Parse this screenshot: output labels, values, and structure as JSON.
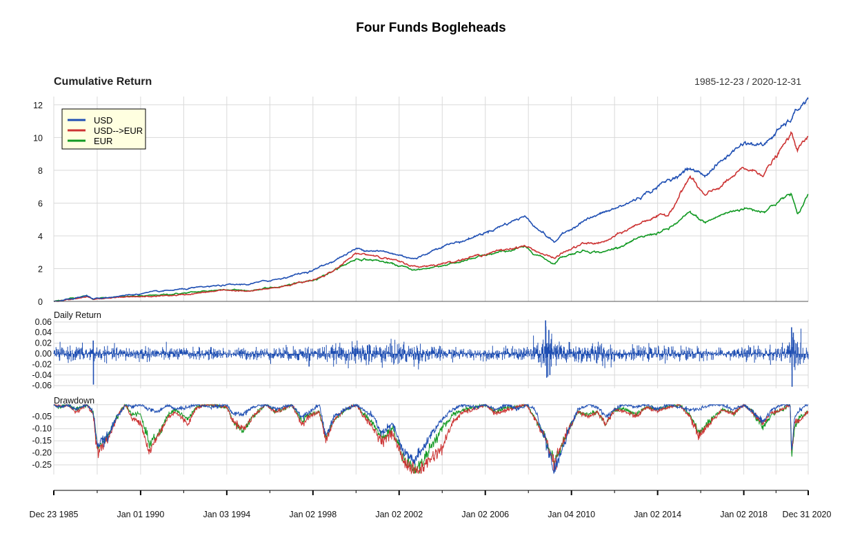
{
  "title": "Four Funds Bogleheads",
  "panels": {
    "cumulative": {
      "label": "Cumulative Return",
      "date_range": "1985-12-23 / 2020-12-31"
    },
    "daily": {
      "label": "Daily Return"
    },
    "drawdown": {
      "label": "Drawdown"
    }
  },
  "colors": {
    "USD": "#1f4fb3",
    "USD-->EUR": "#cc3333",
    "EUR": "#119922"
  },
  "chart_data": [
    {
      "type": "line",
      "title": "Cumulative Return",
      "subtitle": "1985-12-23 / 2020-12-31",
      "x": [
        1985.97,
        1987.5,
        1987.8,
        1988.5,
        1990.5,
        1992.0,
        1994.0,
        1995.0,
        1996.5,
        1998.0,
        1999.0,
        2000.0,
        2001.0,
        2002.8,
        2004.0,
        2005.0,
        2006.0,
        2007.8,
        2009.2,
        2009.5,
        2010.5,
        2011.5,
        2012.5,
        2013.5,
        2014.5,
        2015.5,
        2016.2,
        2017.0,
        2018.0,
        2018.9,
        2019.5,
        2020.2,
        2020.5,
        2021.0
      ],
      "series": [
        {
          "name": "USD",
          "values": [
            0,
            0.35,
            0.15,
            0.25,
            0.55,
            0.75,
            1.0,
            1.05,
            1.4,
            1.9,
            2.5,
            3.2,
            3.1,
            2.6,
            3.4,
            3.7,
            4.2,
            5.2,
            3.6,
            4.0,
            4.9,
            5.4,
            5.9,
            6.6,
            7.4,
            8.1,
            7.7,
            8.6,
            9.7,
            9.5,
            10.3,
            11.1,
            11.7,
            12.4
          ]
        },
        {
          "name": "USD-->EUR",
          "values": [
            0,
            0.3,
            0.1,
            0.2,
            0.3,
            0.4,
            0.7,
            0.6,
            0.9,
            1.3,
            1.9,
            2.9,
            2.8,
            2.1,
            2.3,
            2.6,
            2.9,
            3.4,
            2.6,
            2.9,
            3.5,
            3.6,
            4.3,
            5.0,
            5.3,
            7.6,
            6.4,
            7.1,
            8.1,
            7.8,
            8.8,
            10.2,
            9.3,
            10.0
          ]
        },
        {
          "name": "EUR",
          "values": [
            0,
            0.35,
            0.15,
            0.25,
            0.35,
            0.5,
            0.75,
            0.65,
            0.9,
            1.3,
            1.9,
            2.6,
            2.5,
            1.9,
            2.2,
            2.45,
            2.8,
            3.3,
            2.3,
            2.7,
            3.1,
            3.0,
            3.5,
            4.0,
            4.4,
            5.4,
            4.8,
            5.3,
            5.7,
            5.5,
            6.0,
            6.6,
            5.2,
            6.6
          ]
        }
      ],
      "ylim": [
        0,
        12.5
      ],
      "yticks": [
        "12",
        "10",
        "8",
        "6",
        "4",
        "2",
        "0"
      ],
      "legend": {
        "position": "top-left",
        "entries": [
          "USD",
          "USD-->EUR",
          "EUR"
        ]
      },
      "grid": true
    },
    {
      "type": "bar",
      "title": "Daily Return",
      "series_name": "USD",
      "ylim": [
        -0.065,
        0.065
      ],
      "yticks": [
        "0.06",
        "0.04",
        "0.02",
        "0.00",
        "-0.02",
        "-0.04",
        "-0.06"
      ],
      "base_volatility": [
        [
          1985.97,
          0.006
        ],
        [
          1987.7,
          0.008
        ],
        [
          1987.85,
          0.007
        ],
        [
          1988.5,
          0.006
        ],
        [
          1990.5,
          0.007
        ],
        [
          1991.5,
          0.006
        ],
        [
          1994.0,
          0.005
        ],
        [
          1997.5,
          0.007
        ],
        [
          1999.0,
          0.008
        ],
        [
          2000.5,
          0.011
        ],
        [
          2002.5,
          0.011
        ],
        [
          2003.5,
          0.007
        ],
        [
          2005.0,
          0.005
        ],
        [
          2007.5,
          0.006
        ],
        [
          2008.5,
          0.012
        ],
        [
          2008.9,
          0.022
        ],
        [
          2009.3,
          0.015
        ],
        [
          2010.0,
          0.009
        ],
        [
          2011.5,
          0.011
        ],
        [
          2012.5,
          0.006
        ],
        [
          2015.5,
          0.007
        ],
        [
          2017.0,
          0.004
        ],
        [
          2018.2,
          0.008
        ],
        [
          2019.0,
          0.006
        ],
        [
          2020.1,
          0.01
        ],
        [
          2020.25,
          0.028
        ],
        [
          2020.5,
          0.012
        ],
        [
          2021.0,
          0.009
        ]
      ],
      "spikes": [
        [
          1987.8,
          0.025
        ],
        [
          1987.81,
          -0.058
        ],
        [
          1997.82,
          -0.024
        ],
        [
          2008.8,
          0.063
        ],
        [
          2008.85,
          -0.045
        ],
        [
          2008.95,
          0.045
        ],
        [
          2009.0,
          -0.04
        ],
        [
          2020.22,
          0.05
        ],
        [
          2020.24,
          -0.062
        ],
        [
          2020.3,
          0.04
        ]
      ],
      "grid": true
    },
    {
      "type": "line",
      "title": "Drawdown",
      "x": [
        1985.97,
        1986.3,
        1986.6,
        1987.0,
        1987.5,
        1987.8,
        1988.0,
        1988.5,
        1988.9,
        1989.3,
        1989.6,
        1990.0,
        1990.4,
        1990.8,
        1991.3,
        1991.6,
        1992.2,
        1992.6,
        1993.2,
        1994.0,
        1994.3,
        1994.8,
        1995.2,
        1995.8,
        1996.3,
        1996.6,
        1997.0,
        1997.5,
        1997.8,
        1998.3,
        1998.6,
        1999.0,
        1999.5,
        2000.0,
        2000.3,
        2000.8,
        2001.2,
        2001.7,
        2002.2,
        2002.7,
        2003.0,
        2003.5,
        2004.0,
        2004.5,
        2005.0,
        2005.5,
        2006.0,
        2006.5,
        2007.0,
        2007.5,
        2007.9,
        2008.3,
        2008.8,
        2009.2,
        2009.5,
        2009.9,
        2010.3,
        2010.8,
        2011.2,
        2011.6,
        2012.0,
        2012.5,
        2013.0,
        2013.5,
        2014.0,
        2014.5,
        2015.0,
        2015.5,
        2015.9,
        2016.2,
        2016.6,
        2017.0,
        2017.5,
        2018.0,
        2018.4,
        2018.9,
        2019.3,
        2019.8,
        2020.15,
        2020.22,
        2020.35,
        2020.6,
        2021.0
      ],
      "series": [
        {
          "name": "USD",
          "values": [
            0,
            -0.01,
            0,
            -0.02,
            0,
            -0.03,
            -0.17,
            -0.13,
            -0.05,
            0,
            -0.01,
            0,
            -0.02,
            -0.03,
            0,
            -0.02,
            -0.01,
            0,
            -0.01,
            0,
            -0.04,
            -0.04,
            -0.01,
            0,
            -0.02,
            -0.01,
            0,
            -0.05,
            -0.03,
            0,
            -0.13,
            -0.05,
            -0.02,
            0,
            -0.02,
            -0.05,
            -0.12,
            -0.08,
            -0.2,
            -0.23,
            -0.2,
            -0.12,
            -0.06,
            -0.02,
            0,
            -0.01,
            0,
            -0.02,
            0,
            -0.02,
            0,
            -0.02,
            -0.15,
            -0.28,
            -0.2,
            -0.1,
            -0.02,
            0,
            -0.01,
            -0.05,
            -0.02,
            0,
            -0.01,
            0,
            -0.02,
            0,
            -0.01,
            -0.02,
            -0.02,
            -0.01,
            0,
            0,
            -0.02,
            0,
            -0.03,
            -0.07,
            -0.02,
            0,
            0,
            -0.2,
            -0.06,
            -0.02,
            0
          ]
        },
        {
          "name": "USD-->EUR",
          "values": [
            0,
            -0.01,
            0,
            -0.03,
            0,
            -0.04,
            -0.2,
            -0.14,
            -0.05,
            0,
            -0.06,
            -0.07,
            -0.2,
            -0.13,
            -0.05,
            -0.03,
            -0.08,
            -0.01,
            0,
            -0.01,
            -0.07,
            -0.1,
            -0.05,
            0,
            -0.03,
            -0.02,
            0,
            -0.08,
            -0.05,
            -0.03,
            -0.15,
            -0.06,
            -0.02,
            0,
            -0.04,
            -0.1,
            -0.15,
            -0.12,
            -0.23,
            -0.28,
            -0.27,
            -0.22,
            -0.18,
            -0.07,
            -0.03,
            -0.02,
            0,
            -0.04,
            -0.02,
            -0.01,
            0,
            -0.06,
            -0.14,
            -0.25,
            -0.18,
            -0.1,
            -0.03,
            -0.05,
            -0.03,
            -0.08,
            -0.02,
            -0.03,
            -0.05,
            -0.01,
            -0.03,
            -0.01,
            0,
            -0.05,
            -0.13,
            -0.1,
            -0.06,
            -0.02,
            -0.04,
            0,
            -0.03,
            -0.08,
            -0.03,
            -0.02,
            0,
            -0.2,
            -0.08,
            -0.06,
            -0.03
          ]
        },
        {
          "name": "EUR",
          "values": [
            0,
            -0.01,
            0,
            -0.02,
            0,
            -0.03,
            -0.18,
            -0.13,
            -0.05,
            0,
            -0.04,
            -0.04,
            -0.16,
            -0.13,
            -0.04,
            -0.02,
            -0.06,
            -0.01,
            0,
            -0.01,
            -0.07,
            -0.11,
            -0.05,
            0,
            -0.03,
            -0.02,
            0,
            -0.07,
            -0.04,
            -0.03,
            -0.14,
            -0.06,
            -0.02,
            0,
            -0.03,
            -0.08,
            -0.14,
            -0.1,
            -0.22,
            -0.27,
            -0.25,
            -0.17,
            -0.1,
            -0.04,
            -0.02,
            -0.01,
            0,
            -0.03,
            -0.01,
            -0.01,
            0,
            -0.05,
            -0.14,
            -0.24,
            -0.18,
            -0.1,
            -0.03,
            -0.04,
            -0.03,
            -0.08,
            -0.02,
            -0.02,
            -0.04,
            -0.01,
            -0.02,
            -0.01,
            0,
            -0.04,
            -0.12,
            -0.09,
            -0.05,
            -0.02,
            -0.04,
            0,
            -0.03,
            -0.1,
            -0.04,
            -0.02,
            0,
            -0.22,
            -0.1,
            -0.05,
            -0.03
          ]
        }
      ],
      "ylim": [
        -0.29,
        0.005
      ],
      "yticks": [
        "-0.05",
        "-0.10",
        "-0.15",
        "-0.20",
        "-0.25"
      ],
      "grid": true
    }
  ],
  "x_axis": {
    "tick_labels": [
      "Dec 23 1985",
      "Jan 01 1990",
      "Jan 03 1994",
      "Jan 02 1998",
      "Jan 02 2002",
      "Jan 02 2006",
      "Jan 04 2010",
      "Jan 02 2014",
      "Jan 02 2018",
      "Dec 31 2020"
    ],
    "tick_dates": [
      1985.97,
      1990.0,
      1994.0,
      1998.0,
      2002.0,
      2006.0,
      2010.0,
      2014.0,
      2018.0,
      2020.99
    ]
  }
}
